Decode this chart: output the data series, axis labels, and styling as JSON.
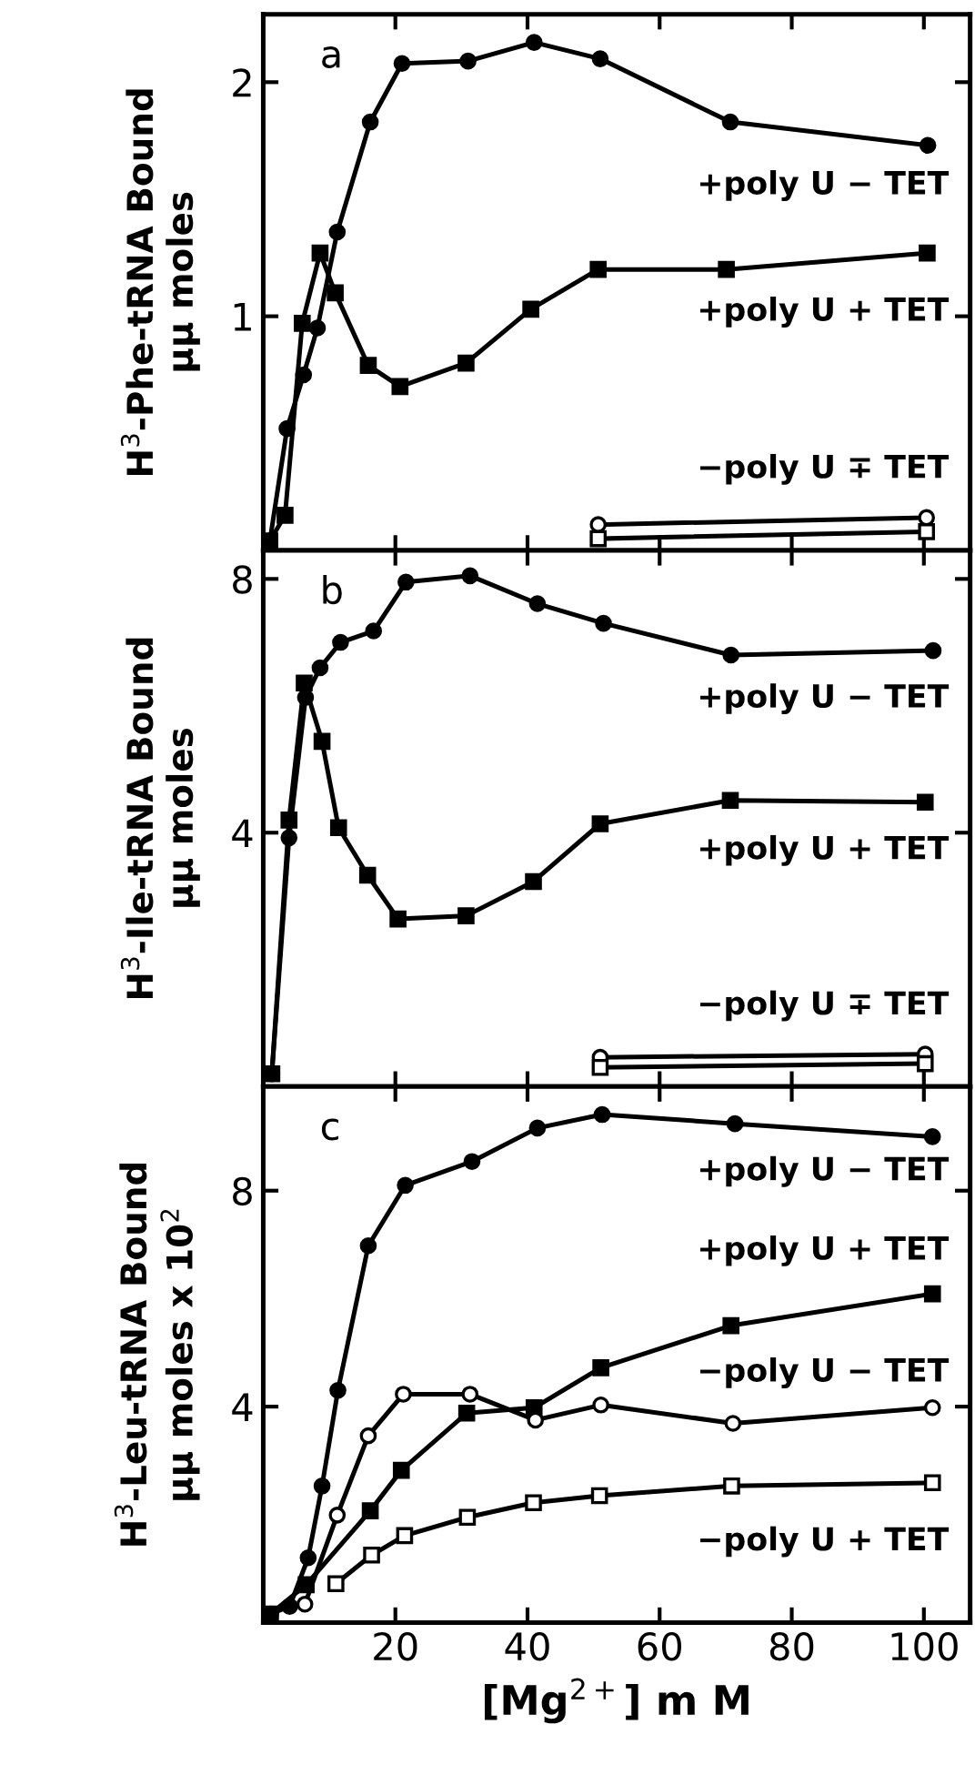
{
  "chart_data": [
    {
      "type": "line",
      "ylabel": "H$^{3}$-Phe-tRNA Bound\nμμ moles",
      "xlim": [
        0,
        107
      ],
      "xticks": [
        {
          "value": 20,
          "label": null
        },
        {
          "value": 40,
          "label": null
        },
        {
          "value": 60,
          "label": null
        },
        {
          "value": 80,
          "label": null
        },
        {
          "value": 100,
          "label": null
        }
      ],
      "ylim": [
        0,
        2.29
      ],
      "yticks": [
        1,
        2
      ],
      "tick_labels": "y",
      "grid": false,
      "legend": "right",
      "line_style": "solid",
      "annotations": [
        "a"
      ],
      "series": [
        {
          "name": "+poly U − TET",
          "color": "#000000",
          "marker": "circle",
          "x": [
            1,
            3.6,
            6.1,
            8.2,
            11.2,
            16.2,
            21,
            31,
            41,
            51,
            70.7,
            100.6
          ],
          "values": [
            0.04,
            0.52,
            0.75,
            0.95,
            1.36,
            1.83,
            2.08,
            2.09,
            2.17,
            2.1,
            1.83,
            1.73
          ]
        },
        {
          "name": "+poly U + TET",
          "color": "#000000",
          "marker": "square",
          "x": [
            1,
            3.3,
            5.9,
            8.6,
            10.9,
            15.9,
            20.7,
            30.7,
            40.5,
            50.7,
            70.1,
            100.5
          ],
          "values": [
            0.04,
            0.15,
            0.97,
            1.27,
            1.1,
            0.79,
            0.7,
            0.8,
            1.03,
            1.2,
            1.2,
            1.27
          ]
        },
        {
          "name": "−poly U ∓ TET",
          "color": "#000000",
          "marker": "circle",
          "x": [
            50.7,
            100.4
          ],
          "values": [
            0.11,
            0.14
          ]
        },
        {
          "color": "#000000",
          "marker": "square",
          "x": [
            50.7,
            100.4
          ],
          "values": [
            0.05,
            0.08
          ]
        }
      ]
    },
    {
      "type": "line",
      "ylabel": "H$^{3}$-Ile-tRNA Bound\nμμ moles",
      "xlim": [
        0,
        107
      ],
      "xticks": [
        {
          "value": 20,
          "label": null
        },
        {
          "value": 40,
          "label": null
        },
        {
          "value": 60,
          "label": null
        },
        {
          "value": 80,
          "label": null
        },
        {
          "value": 100,
          "label": null
        }
      ],
      "ylim": [
        0,
        8.45
      ],
      "yticks": [
        4,
        8
      ],
      "tick_labels": "y",
      "grid": false,
      "legend": "right",
      "line_style": "solid",
      "annotations": [
        "b"
      ],
      "series": [
        {
          "name": "+poly U − TET",
          "color": "#000000",
          "marker": "circle",
          "x": [
            1.3,
            3.9,
            6.4,
            8.6,
            11.7,
            16.7,
            21.6,
            31.3,
            41.5,
            51.5,
            70.8,
            101.4
          ],
          "values": [
            0.2,
            3.92,
            6.13,
            6.6,
            7.0,
            7.18,
            7.95,
            8.05,
            7.61,
            7.3,
            6.8,
            6.87
          ]
        },
        {
          "name": "+poly U + TET",
          "color": "#000000",
          "marker": "square",
          "x": [
            1.3,
            3.9,
            6.2,
            8.9,
            11.4,
            15.8,
            20.4,
            30.7,
            40.9,
            51,
            70.7,
            100.2
          ],
          "values": [
            0.2,
            4.2,
            6.36,
            5.44,
            4.08,
            3.33,
            2.64,
            2.69,
            3.23,
            4.14,
            4.51,
            4.48
          ]
        },
        {
          "name": "−poly U ∓ TET",
          "color": "#000000",
          "marker": "circle",
          "x": [
            51,
            100.2
          ],
          "values": [
            0.46,
            0.51
          ]
        },
        {
          "color": "#000000",
          "marker": "square",
          "x": [
            51,
            100.2
          ],
          "values": [
            0.3,
            0.36
          ]
        }
      ]
    },
    {
      "type": "line",
      "ylabel": "H$^{3}$-Leu-tRNA Bound\nμμ moles x 10$^{2}$",
      "xlabel": "[Mg$^{2+}$] m M",
      "xlim": [
        0,
        107
      ],
      "xticks": [
        20,
        40,
        60,
        80,
        100
      ],
      "ylim": [
        0,
        9.93
      ],
      "yticks": [
        4,
        8
      ],
      "grid": false,
      "legend": "right",
      "line_style": "solid",
      "annotations": [
        "c"
      ],
      "series": [
        {
          "name": "+poly U − TET",
          "color": "#000000",
          "marker": "circle",
          "x": [
            1.1,
            4,
            6.8,
            8.9,
            11.3,
            15.9,
            21.5,
            31.6,
            41.5,
            51.3,
            71.4,
            101.3
          ],
          "values": [
            0.16,
            0.3,
            1.2,
            2.53,
            4.3,
            6.98,
            8.1,
            8.54,
            9.16,
            9.41,
            9.24,
            9.0
          ]
        },
        {
          "name": "+poly U + TET",
          "color": "#000000",
          "marker": "square",
          "x": [
            1.1,
            6.5,
            16.2,
            20.9,
            30.8,
            41,
            51.1,
            70.8,
            101.3
          ],
          "values": [
            0.16,
            0.7,
            2.07,
            2.82,
            3.88,
            3.98,
            4.72,
            5.5,
            6.09
          ]
        },
        {
          "name": "−poly U − TET",
          "color": "#000000",
          "marker": "circle",
          "x": [
            6.3,
            11.2,
            15.9,
            21.2,
            31.3,
            41.2,
            51.1,
            71.1,
            101.3
          ],
          "values": [
            0.34,
            1.99,
            3.46,
            4.23,
            4.23,
            3.75,
            4.03,
            3.69,
            3.98
          ]
        },
        {
          "name": "−poly U + TET",
          "color": "#000000",
          "marker": "square",
          "x": [
            11,
            16.4,
            21.4,
            30.9,
            40.9,
            50.9,
            70.9,
            101.3
          ],
          "values": [
            0.72,
            1.25,
            1.61,
            1.95,
            2.22,
            2.35,
            2.53,
            2.59
          ]
        }
      ]
    }
  ]
}
